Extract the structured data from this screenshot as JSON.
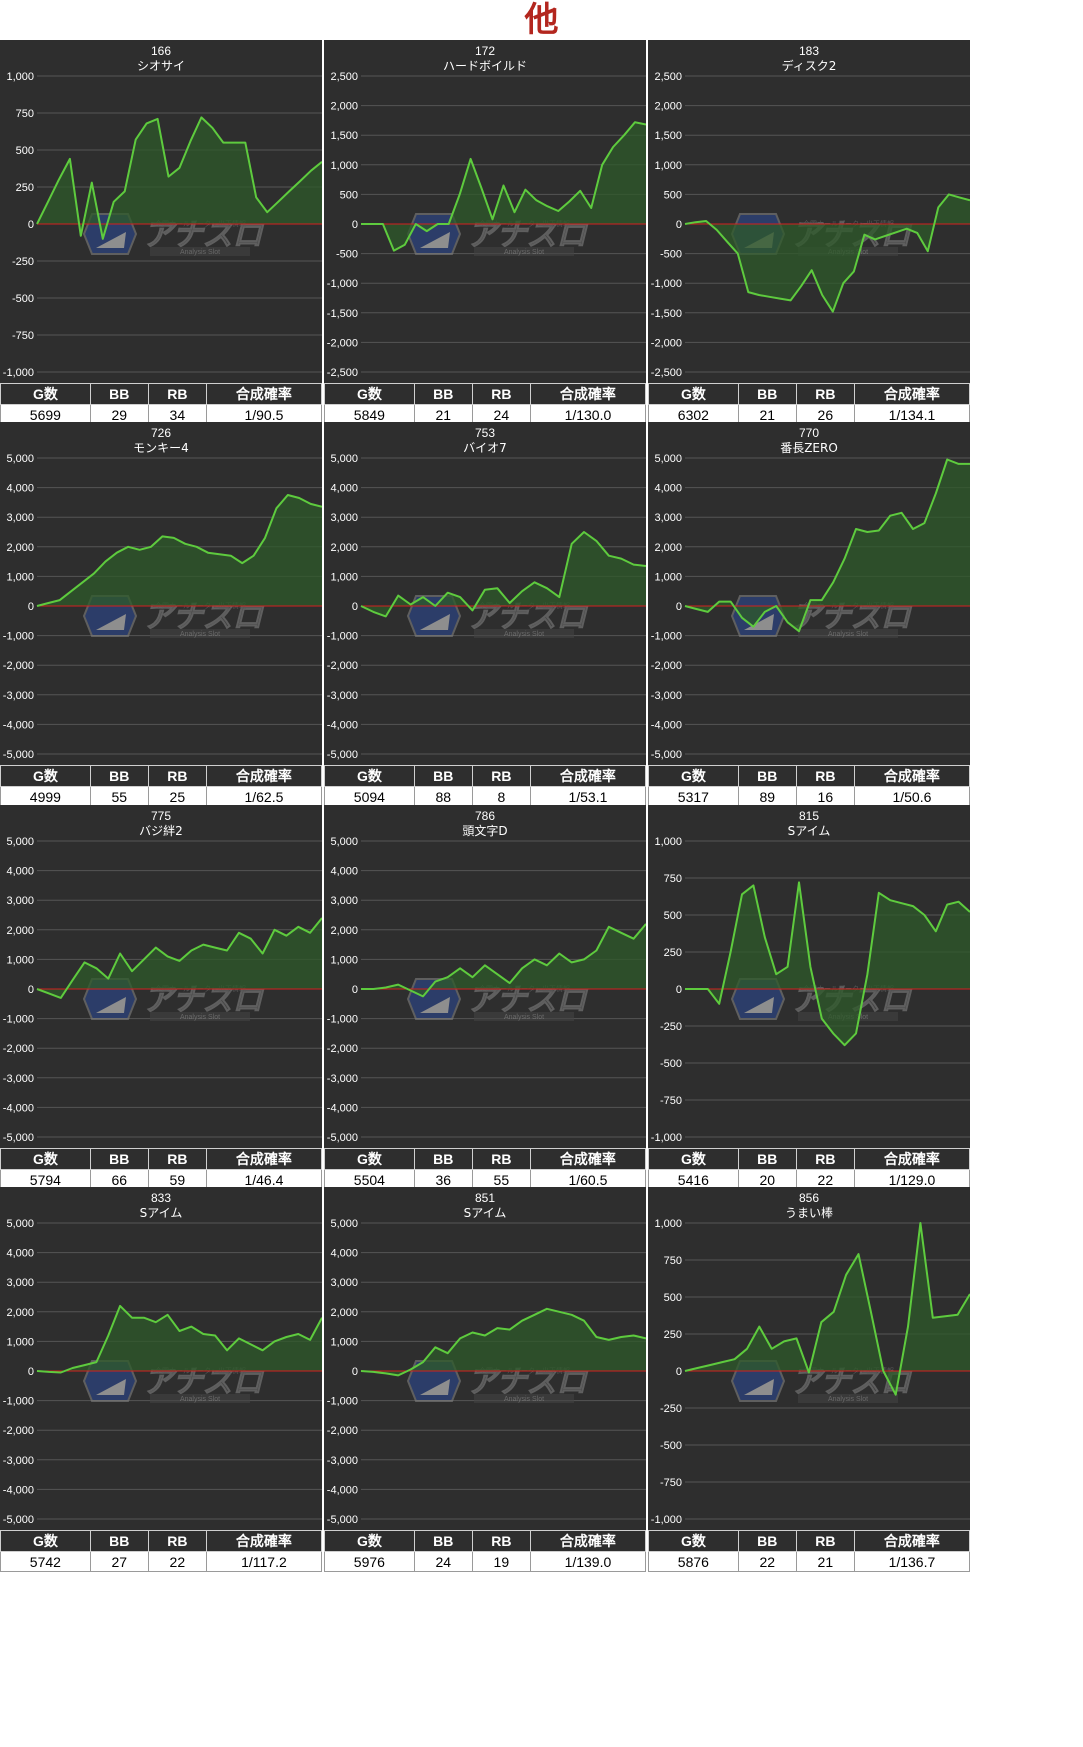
{
  "page": {
    "title": "他"
  },
  "table_headers": [
    "G数",
    "BB",
    "RB",
    "合成確率"
  ],
  "colors": {
    "line": "#5ecb3e",
    "fill": "#2e5a2a",
    "zero": "#d42020",
    "bg": "#2e2e2e",
    "grid": "#555555"
  },
  "watermark": {
    "brand": "アナスロ",
    "tagline": "全国ホールデータ・出玉情報",
    "sub": "Analysis Slot"
  },
  "chart_data": [
    {
      "type": "line",
      "number": "166",
      "name": "シオサイ",
      "ylim": [
        -1000,
        1000
      ],
      "yticks": [
        "1,000",
        "750",
        "500",
        "250",
        "0",
        "-250",
        "-500",
        "-750",
        "-1,000"
      ],
      "values": [
        0,
        150,
        300,
        440,
        -80,
        280,
        -100,
        150,
        220,
        570,
        680,
        710,
        320,
        380,
        560,
        720,
        650,
        550,
        550,
        550,
        180,
        80,
        150,
        220,
        290,
        360,
        420
      ],
      "stats": {
        "games": "5699",
        "bb": "29",
        "rb": "34",
        "prob": "1/90.5"
      }
    },
    {
      "type": "line",
      "number": "172",
      "name": "ハードボイルド",
      "ylim": [
        -2500,
        2500
      ],
      "yticks": [
        "2,500",
        "2,000",
        "1,500",
        "1,000",
        "500",
        "0",
        "-500",
        "-1,000",
        "-1,500",
        "-2,000",
        "-2,500"
      ],
      "values": [
        0,
        0,
        0,
        -450,
        -350,
        0,
        -120,
        0,
        0,
        500,
        1100,
        600,
        80,
        650,
        200,
        580,
        400,
        300,
        220,
        380,
        560,
        270,
        1000,
        1300,
        1500,
        1720,
        1680
      ],
      "stats": {
        "games": "5849",
        "bb": "21",
        "rb": "24",
        "prob": "1/130.0"
      }
    },
    {
      "type": "line",
      "number": "183",
      "name": "ディスク2",
      "ylim": [
        -2500,
        2500
      ],
      "yticks": [
        "2,500",
        "2,000",
        "1,500",
        "1,000",
        "500",
        "0",
        "-500",
        "-1,000",
        "-1,500",
        "-2,000",
        "-2,500"
      ],
      "values": [
        0,
        30,
        50,
        -100,
        -300,
        -500,
        -1150,
        -1200,
        -1230,
        -1260,
        -1290,
        -1050,
        -780,
        -1200,
        -1480,
        -1000,
        -800,
        -180,
        -260,
        -200,
        -140,
        -80,
        -150,
        -460,
        280,
        500,
        450,
        400
      ],
      "stats": {
        "games": "6302",
        "bb": "21",
        "rb": "26",
        "prob": "1/134.1"
      }
    },
    {
      "type": "line",
      "number": "726",
      "name": "モンキー4",
      "ylim": [
        -5000,
        5000
      ],
      "yticks": [
        "5,000",
        "4,000",
        "3,000",
        "2,000",
        "1,000",
        "0",
        "-1,000",
        "-2,000",
        "-3,000",
        "-4,000",
        "-5,000"
      ],
      "values": [
        0,
        100,
        200,
        500,
        800,
        1100,
        1500,
        1800,
        2000,
        1900,
        2000,
        2350,
        2300,
        2100,
        2000,
        1800,
        1750,
        1700,
        1450,
        1700,
        2300,
        3300,
        3750,
        3650,
        3450,
        3350
      ],
      "stats": {
        "games": "4999",
        "bb": "55",
        "rb": "25",
        "prob": "1/62.5"
      }
    },
    {
      "type": "line",
      "number": "753",
      "name": "バイオ7",
      "ylim": [
        -5000,
        5000
      ],
      "yticks": [
        "5,000",
        "4,000",
        "3,000",
        "2,000",
        "1,000",
        "0",
        "-1,000",
        "-2,000",
        "-3,000",
        "-4,000",
        "-5,000"
      ],
      "values": [
        0,
        -200,
        -350,
        350,
        50,
        300,
        0,
        450,
        300,
        -150,
        550,
        600,
        100,
        500,
        800,
        600,
        300,
        2100,
        2500,
        2200,
        1700,
        1600,
        1400,
        1350
      ],
      "stats": {
        "games": "5094",
        "bb": "88",
        "rb": "8",
        "prob": "1/53.1"
      }
    },
    {
      "type": "line",
      "number": "770",
      "name": "番長ZERO",
      "ylim": [
        -5000,
        5000
      ],
      "yticks": [
        "5,000",
        "4,000",
        "3,000",
        "2,000",
        "1,000",
        "0",
        "-1,000",
        "-2,000",
        "-3,000",
        "-4,000",
        "-5,000"
      ],
      "values": [
        0,
        -100,
        -200,
        150,
        150,
        -400,
        -700,
        -200,
        0,
        -550,
        -850,
        200,
        200,
        800,
        1600,
        2600,
        2500,
        2550,
        3050,
        3150,
        2600,
        2800,
        3800,
        4950,
        4800,
        4800
      ],
      "stats": {
        "games": "5317",
        "bb": "89",
        "rb": "16",
        "prob": "1/50.6"
      }
    },
    {
      "type": "line",
      "number": "775",
      "name": "バジ絆2",
      "ylim": [
        -5000,
        5000
      ],
      "yticks": [
        "5,000",
        "4,000",
        "3,000",
        "2,000",
        "1,000",
        "0",
        "-1,000",
        "-2,000",
        "-3,000",
        "-4,000",
        "-5,000"
      ],
      "values": [
        0,
        -150,
        -300,
        300,
        900,
        700,
        350,
        1200,
        600,
        1000,
        1400,
        1100,
        950,
        1300,
        1500,
        1400,
        1300,
        1900,
        1700,
        1200,
        2000,
        1800,
        2100,
        1900,
        2400
      ],
      "stats": {
        "games": "5794",
        "bb": "66",
        "rb": "59",
        "prob": "1/46.4"
      }
    },
    {
      "type": "line",
      "number": "786",
      "name": "頭文字D",
      "ylim": [
        -5000,
        5000
      ],
      "yticks": [
        "5,000",
        "4,000",
        "3,000",
        "2,000",
        "1,000",
        "0",
        "-1,000",
        "-2,000",
        "-3,000",
        "-4,000",
        "-5,000"
      ],
      "values": [
        0,
        0,
        50,
        150,
        -50,
        -250,
        250,
        400,
        700,
        400,
        800,
        500,
        200,
        700,
        1000,
        800,
        1200,
        900,
        1000,
        1300,
        2100,
        1900,
        1700,
        2200
      ],
      "stats": {
        "games": "5504",
        "bb": "36",
        "rb": "55",
        "prob": "1/60.5"
      }
    },
    {
      "type": "line",
      "number": "815",
      "name": "Sアイム",
      "ylim": [
        -1000,
        1000
      ],
      "yticks": [
        "1,000",
        "750",
        "500",
        "250",
        "0",
        "-250",
        "-500",
        "-750",
        "-1,000"
      ],
      "values": [
        0,
        0,
        0,
        -100,
        250,
        640,
        700,
        350,
        100,
        150,
        720,
        150,
        -200,
        -300,
        -380,
        -300,
        100,
        650,
        600,
        580,
        560,
        500,
        390,
        570,
        590,
        520
      ],
      "stats": {
        "games": "5416",
        "bb": "20",
        "rb": "22",
        "prob": "1/129.0"
      }
    },
    {
      "type": "line",
      "number": "833",
      "name": "Sアイム",
      "ylim": [
        -5000,
        5000
      ],
      "yticks": [
        "5,000",
        "4,000",
        "3,000",
        "2,000",
        "1,000",
        "0",
        "-1,000",
        "-2,000",
        "-3,000",
        "-4,000",
        "-5,000"
      ],
      "values": [
        0,
        -30,
        -50,
        100,
        200,
        300,
        1200,
        2200,
        1800,
        1800,
        1650,
        1900,
        1350,
        1500,
        1250,
        1200,
        700,
        1100,
        900,
        700,
        1000,
        1150,
        1250,
        1050,
        1800
      ],
      "stats": {
        "games": "5742",
        "bb": "27",
        "rb": "22",
        "prob": "1/117.2"
      }
    },
    {
      "type": "line",
      "number": "851",
      "name": "Sアイム",
      "ylim": [
        -5000,
        5000
      ],
      "yticks": [
        "5,000",
        "4,000",
        "3,000",
        "2,000",
        "1,000",
        "0",
        "-1,000",
        "-2,000",
        "-3,000",
        "-4,000",
        "-5,000"
      ],
      "values": [
        0,
        -30,
        -80,
        -150,
        50,
        300,
        800,
        600,
        1100,
        1300,
        1200,
        1450,
        1400,
        1700,
        1900,
        2100,
        2000,
        1900,
        1700,
        1150,
        1050,
        1150,
        1200,
        1100
      ],
      "stats": {
        "games": "5976",
        "bb": "24",
        "rb": "19",
        "prob": "1/139.0"
      }
    },
    {
      "type": "line",
      "number": "856",
      "name": "うまい棒",
      "ylim": [
        -1000,
        1000
      ],
      "yticks": [
        "1,000",
        "750",
        "500",
        "250",
        "0",
        "-250",
        "-500",
        "-750",
        "-1,000"
      ],
      "values": [
        0,
        20,
        40,
        60,
        80,
        150,
        300,
        150,
        200,
        220,
        -10,
        330,
        400,
        650,
        790,
        400,
        0,
        -160,
        300,
        1000,
        360,
        370,
        380,
        520
      ],
      "stats": {
        "games": "5876",
        "bb": "22",
        "rb": "21",
        "prob": "1/136.7"
      }
    }
  ]
}
